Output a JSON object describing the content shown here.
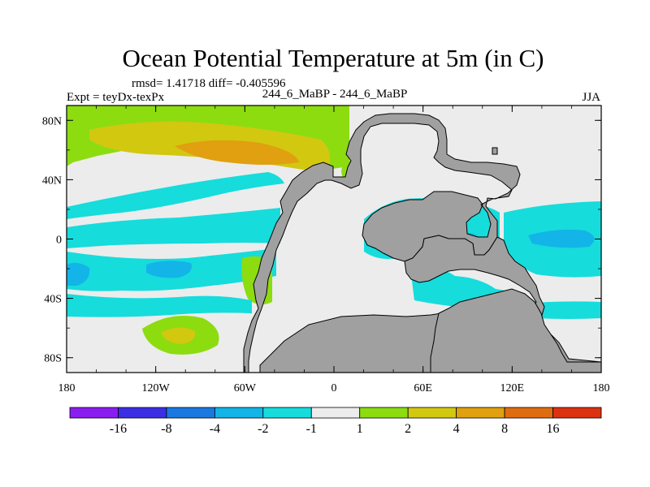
{
  "chart_data": {
    "type": "heatmap",
    "title": "Ocean Potential Temperature at 5m (in C)",
    "stats_text": "rmsd= 1.41718 diff= -0.405596",
    "left_label": "Expt = teyDx-texPx",
    "center_label": "244_6_MaBP - 244_6_MaBP",
    "right_label": "JJA",
    "x_ticks": [
      "180",
      "120W",
      "60W",
      "0",
      "60E",
      "120E",
      "180"
    ],
    "y_ticks": [
      "80N",
      "40N",
      "0",
      "40S",
      "80S"
    ],
    "lon_range": [
      -180,
      180
    ],
    "lat_range": [
      -90,
      90
    ],
    "colorbar": {
      "labels": [
        "-16",
        "-8",
        "-4",
        "-2",
        "-1",
        "1",
        "2",
        "4",
        "8",
        "16"
      ],
      "colors": [
        "#8a1df0",
        "#3b2ee4",
        "#1a78e0",
        "#13b4e8",
        "#16dcdc",
        "#ececec",
        "#8cdc10",
        "#d2c810",
        "#e0a010",
        "#e06c10",
        "#dc3210"
      ]
    },
    "colors": {
      "background": "#ececec",
      "land": "#a0a0a0",
      "cyan": "#16dcdc",
      "light_blue": "#13b4e8",
      "green": "#8cdc10",
      "yellow": "#d2c810",
      "orange": "#e0a010"
    }
  }
}
